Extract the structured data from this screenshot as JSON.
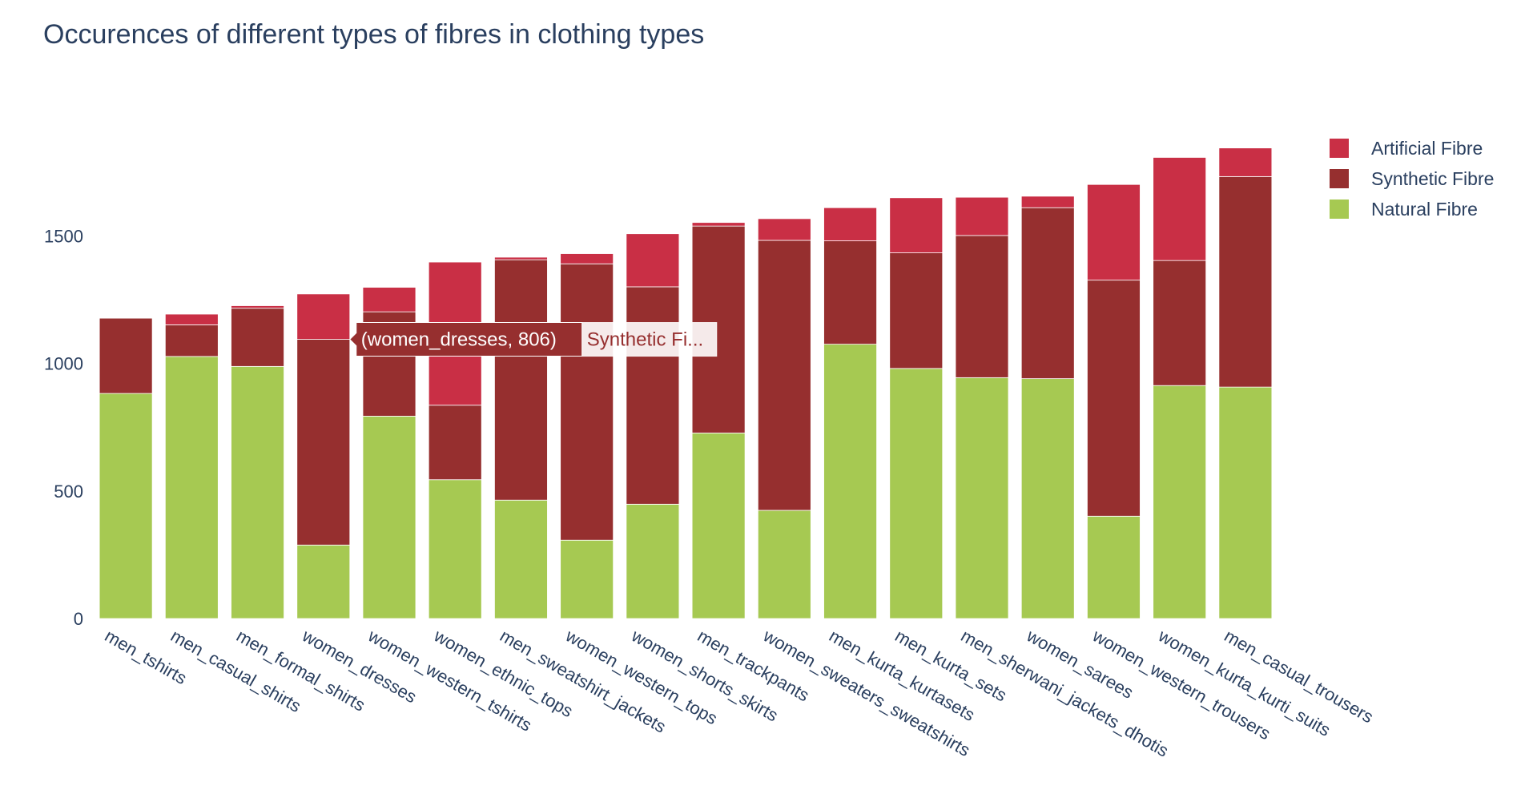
{
  "colors": {
    "natural": "#a6c952",
    "synthetic": "#962f2f",
    "artificial": "#c92f45",
    "text": "#2a3f5f",
    "grid": "#ffffff"
  },
  "chart_data": {
    "type": "bar",
    "stacked": true,
    "title": "Occurences of different types of fibres in clothing types",
    "xlabel": "",
    "ylabel": "",
    "ylim": [
      0,
      2000
    ],
    "yticks": [
      0,
      500,
      1000,
      1500
    ],
    "grid": false,
    "legend_position": "top-right",
    "categories": [
      "men_tshirts",
      "men_casual_shirts",
      "men_formal_shirts",
      "women_dresses",
      "women_western_tshirts",
      "women_ethnic_tops",
      "men_sweatshirt_jackets",
      "women_western_tops",
      "women_shorts_skirts",
      "men_trackpants",
      "women_sweaters_sweatshirts",
      "men_kurta_kurtasets",
      "men_kurta_sets",
      "men_sherwani_jackets_dhotis",
      "women_sarees",
      "women_western_trousers",
      "women_kurta_kurti_suits",
      "men_casual_trousers"
    ],
    "series": [
      {
        "name": "Natural Fibre",
        "color": "#a6c952",
        "values": [
          882,
          1027,
          988,
          288,
          793,
          544,
          464,
          307,
          448,
          727,
          424,
          1075,
          980,
          944,
          940,
          401,
          913,
          907
        ]
      },
      {
        "name": "Synthetic Fibre",
        "color": "#962f2f",
        "values": [
          295,
          124,
          228,
          806,
          409,
          292,
          942,
          1083,
          852,
          811,
          1058,
          405,
          453,
          557,
          670,
          925,
          490,
          825
        ]
      },
      {
        "name": "Artificial Fibre",
        "color": "#c92f45",
        "values": [
          0,
          42,
          10,
          178,
          96,
          561,
          10,
          40,
          208,
          14,
          85,
          130,
          216,
          150,
          45,
          375,
          404,
          112
        ]
      }
    ],
    "legend_order": [
      "Artificial Fibre",
      "Synthetic Fibre",
      "Natural Fibre"
    ],
    "hover": {
      "category": "women_dresses",
      "series": "Synthetic Fibre",
      "label": "(women_dresses, 806)",
      "name_truncated": "Synthetic Fi..."
    }
  }
}
